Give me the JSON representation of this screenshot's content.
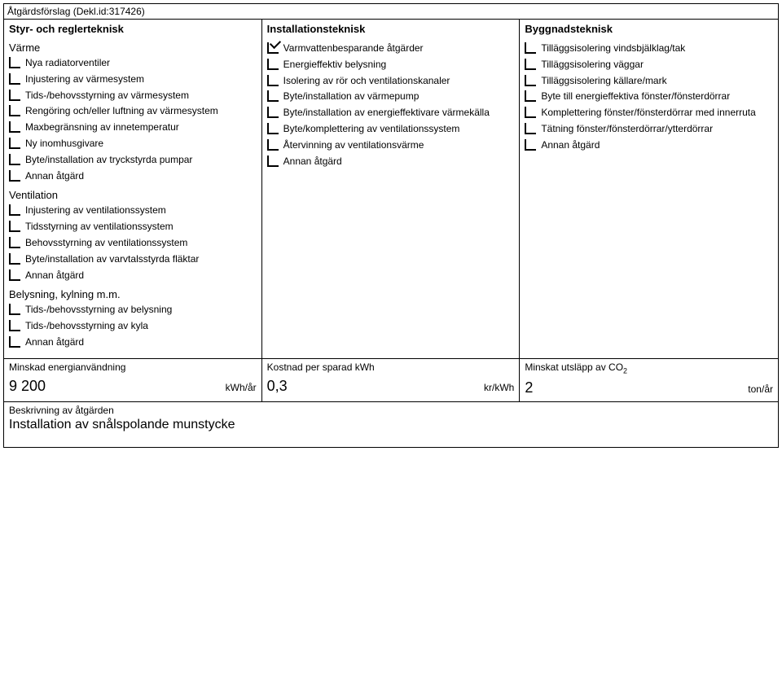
{
  "title": "Åtgärdsförslag (Dekl.id:317426)",
  "col1": {
    "header": "Styr- och reglerteknisk",
    "sections": [
      {
        "title": "Värme",
        "items": [
          {
            "label": "Nya radiatorventiler",
            "checked": false
          },
          {
            "label": "Injustering av värmesystem",
            "checked": false
          },
          {
            "label": "Tids-/behovsstyrning av värmesystem",
            "checked": false
          },
          {
            "label": "Rengöring och/eller luftning av värmesystem",
            "checked": false
          },
          {
            "label": "Maxbegränsning av innetemperatur",
            "checked": false
          },
          {
            "label": "Ny inomhusgivare",
            "checked": false
          },
          {
            "label": "Byte/installation av tryckstyrda pumpar",
            "checked": false
          },
          {
            "label": "Annan åtgärd",
            "checked": false
          }
        ]
      },
      {
        "title": "Ventilation",
        "items": [
          {
            "label": "Injustering av ventilationssystem",
            "checked": false
          },
          {
            "label": "Tidsstyrning av ventilationssystem",
            "checked": false
          },
          {
            "label": "Behovsstyrning av ventilationssystem",
            "checked": false
          },
          {
            "label": "Byte/installation av varvtalsstyrda fläktar",
            "checked": false
          },
          {
            "label": "Annan åtgärd",
            "checked": false
          }
        ]
      },
      {
        "title": "Belysning, kylning m.m.",
        "items": [
          {
            "label": "Tids-/behovsstyrning av belysning",
            "checked": false
          },
          {
            "label": "Tids-/behovsstyrning av kyla",
            "checked": false
          },
          {
            "label": "Annan åtgärd",
            "checked": false
          }
        ]
      }
    ]
  },
  "col2": {
    "header": "Installationsteknisk",
    "items": [
      {
        "label": "Varmvattenbesparande åtgärder",
        "checked": true
      },
      {
        "label": "Energieffektiv belysning",
        "checked": false
      },
      {
        "label": "Isolering av rör och ventilationskanaler",
        "checked": false
      },
      {
        "label": "Byte/installation av värmepump",
        "checked": false
      },
      {
        "label": "Byte/installation av energieffektivare värmekälla",
        "checked": false
      },
      {
        "label": "Byte/komplettering av ventilationssystem",
        "checked": false
      },
      {
        "label": "Återvinning av ventilationsvärme",
        "checked": false
      },
      {
        "label": "Annan åtgärd",
        "checked": false
      }
    ]
  },
  "col3": {
    "header": "Byggnadsteknisk",
    "items": [
      {
        "label": "Tilläggsisolering vindsbjälklag/tak",
        "checked": false
      },
      {
        "label": "Tilläggsisolering väggar",
        "checked": false
      },
      {
        "label": "Tilläggsisolering källare/mark",
        "checked": false
      },
      {
        "label": "Byte till energieffektiva fönster/fönsterdörrar",
        "checked": false
      },
      {
        "label": "Komplettering fönster/fönsterdörrar med innerruta",
        "checked": false
      },
      {
        "label": "Tätning fönster/fönsterdörrar/ytterdörrar",
        "checked": false
      },
      {
        "label": "Annan åtgärd",
        "checked": false
      }
    ]
  },
  "bottom": {
    "c1": {
      "label": "Minskad energianvändning",
      "value": "9 200",
      "unit": "kWh/år"
    },
    "c2": {
      "label": "Kostnad per sparad kWh",
      "value": "0,3",
      "unit": "kr/kWh"
    },
    "c3": {
      "label": "Minskat utsläpp av CO",
      "sub": "2",
      "value": "2",
      "unit": "ton/år"
    }
  },
  "desc": {
    "label": "Beskrivning av åtgärden",
    "text": "Installation av snålspolande munstycke"
  }
}
